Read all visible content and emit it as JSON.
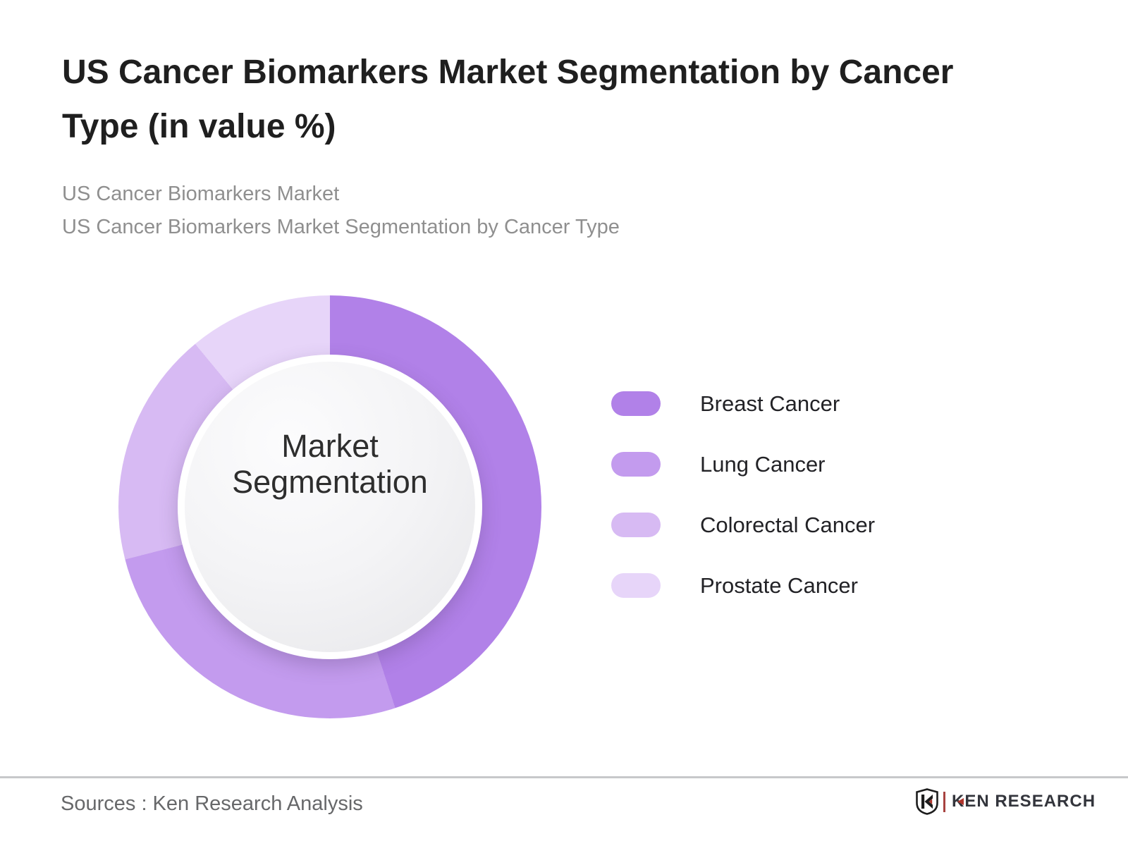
{
  "page": {
    "title_line1": "US Cancer Biomarkers Market Segmentation by Cancer",
    "title_line2": "Type (in value %)",
    "subtitle_line1": "US Cancer Biomarkers Market",
    "subtitle_line2": "US Cancer Biomarkers Market Segmentation by Cancer Type"
  },
  "chart_data": {
    "type": "pie",
    "variant": "donut",
    "title": "US Cancer Biomarkers Market Segmentation by Cancer Type (in value %)",
    "unit": "value %",
    "center_label_line1": "Market",
    "center_label_line2": "Segmentation",
    "legend_position": "right",
    "start_angle_deg": 0,
    "direction": "clockwise",
    "segments": [
      {
        "label": "Breast Cancer",
        "value": 45,
        "color": "#b181e8"
      },
      {
        "label": "Lung Cancer",
        "value": 26,
        "color": "#c39bee"
      },
      {
        "label": "Colorectal Cancer",
        "value": 18,
        "color": "#d7baf3"
      },
      {
        "label": "Prostate Cancer",
        "value": 11,
        "color": "#e7d5f9"
      }
    ],
    "center_circle_color": "#f0f0f2",
    "center_ring_color": "#ffffff"
  },
  "footer": {
    "sources": "Sources : Ken Research Analysis",
    "logo_text": "KEN RESEARCH",
    "logo_accent_color": "#b0352c",
    "logo_text_color": "#33353c"
  }
}
